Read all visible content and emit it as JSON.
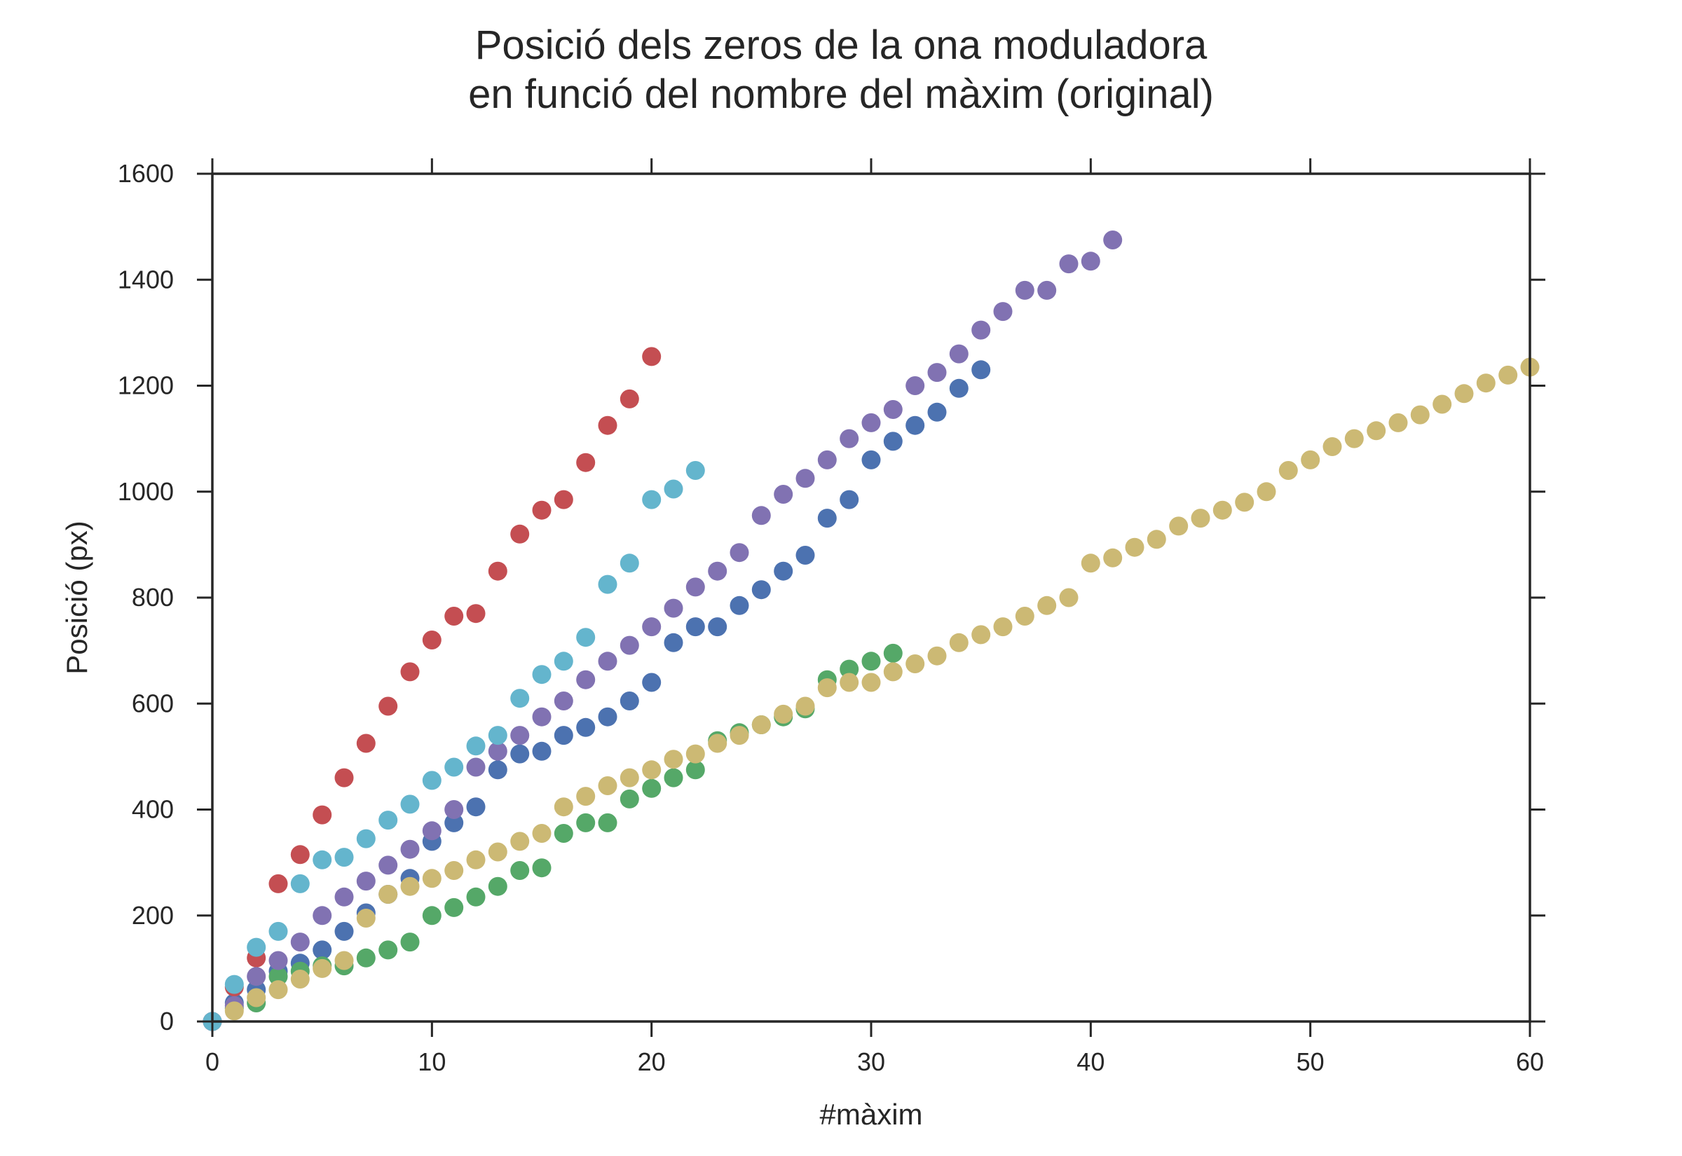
{
  "chart_data": {
    "type": "scatter",
    "title": "Posició dels zeros de la ona moduladora",
    "subtitle": "en funció del nombre del màxim (original)",
    "xlabel": "#màxim",
    "ylabel": "Posició (px)",
    "xlim": [
      0,
      60
    ],
    "ylim": [
      0,
      1600
    ],
    "xticks": [
      0,
      10,
      20,
      30,
      40,
      50,
      60
    ],
    "yticks": [
      0,
      200,
      400,
      600,
      800,
      1000,
      1200,
      1400,
      1600
    ],
    "grid": false,
    "legend": "none",
    "series": [
      {
        "color": "#4c72b0",
        "x": [
          0,
          1,
          2,
          3,
          4,
          5,
          6,
          7,
          8,
          9,
          10,
          11,
          12,
          13,
          14,
          15,
          16,
          17,
          18,
          19,
          20,
          21,
          22,
          23,
          24,
          25,
          26,
          27,
          28,
          29,
          30,
          31,
          32,
          33,
          34,
          35
        ],
        "y": [
          0,
          35,
          60,
          95,
          110,
          135,
          170,
          205,
          240,
          270,
          340,
          375,
          405,
          475,
          505,
          510,
          540,
          555,
          575,
          605,
          640,
          715,
          745,
          745,
          785,
          815,
          850,
          880,
          950,
          985,
          1060,
          1095,
          1125,
          1150,
          1195,
          1230
        ]
      },
      {
        "color": "#55a868",
        "x": [
          0,
          1,
          2,
          3,
          4,
          5,
          6,
          7,
          8,
          9,
          10,
          11,
          12,
          13,
          14,
          15,
          16,
          17,
          18,
          19,
          20,
          21,
          22,
          23,
          24,
          25,
          26,
          27,
          28,
          29,
          30,
          31
        ],
        "y": [
          0,
          25,
          35,
          85,
          95,
          105,
          105,
          120,
          135,
          150,
          200,
          215,
          235,
          255,
          285,
          290,
          355,
          375,
          375,
          420,
          440,
          460,
          475,
          530,
          545,
          560,
          575,
          590,
          645,
          665,
          680,
          695
        ]
      },
      {
        "color": "#c44e52",
        "x": [
          0,
          1,
          2,
          3,
          4,
          5,
          6,
          7,
          8,
          9,
          10,
          11,
          12,
          13,
          14,
          15,
          16,
          17,
          18,
          19,
          20
        ],
        "y": [
          0,
          65,
          120,
          260,
          315,
          390,
          460,
          525,
          595,
          660,
          720,
          765,
          770,
          850,
          920,
          965,
          985,
          1055,
          1125,
          1175,
          1255
        ]
      },
      {
        "color": "#8172b2",
        "x": [
          0,
          1,
          2,
          3,
          4,
          5,
          6,
          7,
          8,
          9,
          10,
          11,
          12,
          13,
          14,
          15,
          16,
          17,
          18,
          19,
          20,
          21,
          22,
          23,
          24,
          25,
          26,
          27,
          28,
          29,
          30,
          31,
          32,
          33,
          34,
          35,
          36,
          37,
          38,
          39,
          40,
          41
        ],
        "y": [
          0,
          30,
          85,
          115,
          150,
          200,
          235,
          265,
          295,
          325,
          360,
          400,
          480,
          510,
          540,
          575,
          605,
          645,
          680,
          710,
          745,
          780,
          820,
          850,
          885,
          955,
          995,
          1025,
          1060,
          1100,
          1130,
          1155,
          1200,
          1225,
          1260,
          1305,
          1340,
          1380,
          1380,
          1430,
          1435,
          1475
        ]
      },
      {
        "color": "#64b5cd",
        "x": [
          0,
          1,
          2,
          3,
          4,
          5,
          6,
          7,
          8,
          9,
          10,
          11,
          12,
          13,
          14,
          15,
          16,
          17,
          18,
          19,
          20,
          21,
          22
        ],
        "y": [
          0,
          70,
          140,
          170,
          260,
          305,
          310,
          345,
          380,
          410,
          455,
          480,
          520,
          540,
          610,
          655,
          680,
          725,
          825,
          865,
          985,
          1005,
          1040
        ]
      },
      {
        "color": "#ccb974",
        "x": [
          1,
          2,
          3,
          4,
          5,
          6,
          7,
          8,
          9,
          10,
          11,
          12,
          13,
          14,
          15,
          16,
          17,
          18,
          19,
          20,
          21,
          22,
          23,
          24,
          25,
          26,
          27,
          28,
          29,
          30,
          31,
          32,
          33,
          34,
          35,
          36,
          37,
          38,
          39,
          40,
          41,
          42,
          43,
          44,
          45,
          46,
          47,
          48,
          49,
          50,
          51,
          52,
          53,
          54,
          55,
          56,
          57,
          58,
          59,
          60
        ],
        "y": [
          20,
          45,
          60,
          80,
          100,
          115,
          195,
          240,
          255,
          270,
          285,
          305,
          320,
          340,
          355,
          405,
          425,
          445,
          460,
          475,
          495,
          505,
          525,
          540,
          560,
          580,
          595,
          630,
          640,
          640,
          660,
          675,
          690,
          715,
          730,
          745,
          765,
          785,
          800,
          865,
          875,
          895,
          910,
          935,
          950,
          965,
          980,
          1000,
          1040,
          1060,
          1085,
          1100,
          1115,
          1130,
          1145,
          1165,
          1185,
          1205,
          1220,
          1235
        ]
      }
    ]
  }
}
